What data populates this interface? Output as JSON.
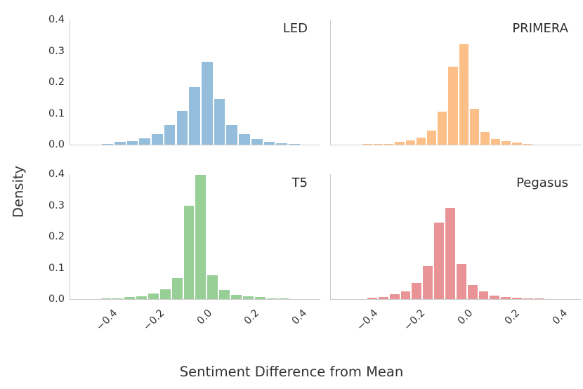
{
  "figure_title": "",
  "axes": {
    "xlabel": "Sentiment Difference from Mean",
    "ylabel": "Density"
  },
  "chart_data": {
    "type": "bar",
    "variant": "histogram",
    "layout": "2x2 grid of density histograms, shared x and y axes, no grid, no legend",
    "xlabel": "Sentiment Difference from Mean",
    "ylabel": "Density",
    "xlim": [
      -0.551,
      0.504
    ],
    "ylim": [
      0,
      0.4
    ],
    "x_tick_values": [
      -0.4,
      -0.2,
      0.0,
      0.2,
      0.4
    ],
    "x_tick_labels": [
      "−0.4",
      "−0.2",
      "0.0",
      "0.2",
      "0.4"
    ],
    "y_tick_values": [
      0.0,
      0.1,
      0.2,
      0.3,
      0.4
    ],
    "y_tick_labels": [
      "0.0",
      "0.1",
      "0.2",
      "0.3",
      "0.4"
    ],
    "grid": false,
    "spine_color": "#cdcdcd",
    "panels": [
      {
        "label": "LED",
        "color": "#94bedc",
        "bin_start": -0.42,
        "bin_width": 0.0525,
        "heights": [
          0.003,
          0.008,
          0.012,
          0.021,
          0.034,
          0.062,
          0.108,
          0.185,
          0.265,
          0.145,
          0.063,
          0.034,
          0.017,
          0.009,
          0.005,
          0.002
        ]
      },
      {
        "label": "PRIMERA",
        "color": "#fdbf88",
        "bin_start": -0.418,
        "bin_width": 0.045,
        "heights": [
          0.0015,
          0.002,
          0.003,
          0.008,
          0.013,
          0.022,
          0.045,
          0.105,
          0.25,
          0.322,
          0.115,
          0.04,
          0.019,
          0.012,
          0.006,
          0.003
        ]
      },
      {
        "label": "T5",
        "color": "#97cf97",
        "bin_start": -0.425,
        "bin_width": 0.05,
        "heights": [
          0.002,
          0.003,
          0.006,
          0.008,
          0.019,
          0.031,
          0.067,
          0.298,
          0.398,
          0.076,
          0.03,
          0.013,
          0.009,
          0.006,
          0.003,
          0.002
        ]
      },
      {
        "label": "Pegasus",
        "color": "#e99396",
        "bin_start": -0.4,
        "bin_width": 0.047,
        "heights": [
          0.0045,
          0.007,
          0.015,
          0.024,
          0.052,
          0.105,
          0.245,
          0.293,
          0.112,
          0.045,
          0.024,
          0.011,
          0.006,
          0.004,
          0.002,
          0.0015
        ]
      }
    ]
  }
}
